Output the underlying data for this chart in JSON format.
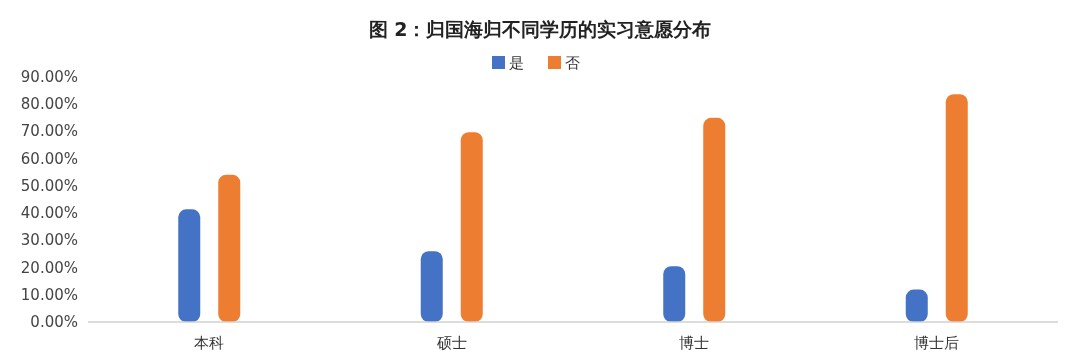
{
  "chart_data": {
    "type": "bar",
    "title": "图 2：归国海归不同学历的实习意愿分布",
    "categories": [
      "本科",
      "硕士",
      "博士",
      "博士后"
    ],
    "series": [
      {
        "name": "是",
        "color": "#4472c4",
        "values": [
          41.4,
          26.0,
          20.5,
          11.9
        ]
      },
      {
        "name": "否",
        "color": "#ed7d31",
        "values": [
          54.1,
          69.7,
          75.0,
          83.7
        ]
      }
    ],
    "ylim": [
      0,
      90
    ],
    "yticks": [
      {
        "value": 0,
        "label": "0.00%"
      },
      {
        "value": 10,
        "label": "10.00%"
      },
      {
        "value": 20,
        "label": "20.00%"
      },
      {
        "value": 30,
        "label": "30.00%"
      },
      {
        "value": 40,
        "label": "40.00%"
      },
      {
        "value": 50,
        "label": "50.00%"
      },
      {
        "value": 60,
        "label": "60.00%"
      },
      {
        "value": 70,
        "label": "70.00%"
      },
      {
        "value": 80,
        "label": "80.00%"
      },
      {
        "value": 90,
        "label": "90.00%"
      }
    ],
    "grid": false,
    "legend": "top"
  }
}
